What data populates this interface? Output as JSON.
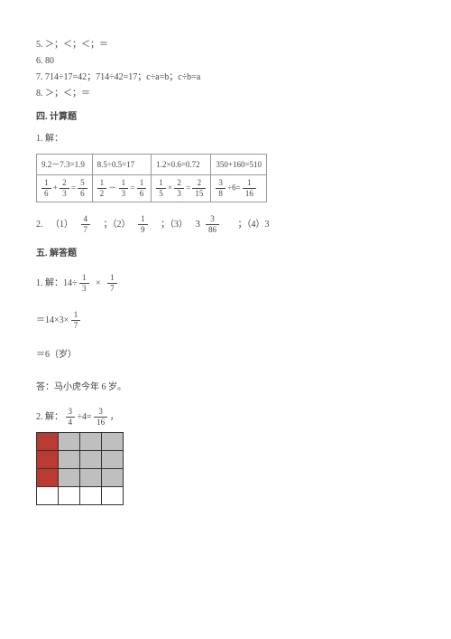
{
  "top_lines": {
    "l5": "5. ＞；＜；＜；＝",
    "l6": "6. 80",
    "l7": "7. 714÷17=42；714÷42=17；c÷a=b；c÷b=a",
    "l8": "8. ＞；＜；＝"
  },
  "sec4_title": "四. 计算题",
  "sec4_q1": "1. 解：",
  "table": {
    "r1c1": "9.2－7.3=1.9",
    "r1c2": "8.5÷0.5=17",
    "r1c3": "1.2×0.6=0.72",
    "r1c4": "350+160=510",
    "r2": {
      "c1": {
        "a_n": "1",
        "a_d": "6",
        "op1": "+",
        "b_n": "2",
        "b_d": "3",
        "eq": "=",
        "r_n": "5",
        "r_d": "6"
      },
      "c2": {
        "a_n": "1",
        "a_d": "2",
        "op1": "－",
        "b_n": "1",
        "b_d": "3",
        "eq": "=",
        "r_n": "1",
        "r_d": "6"
      },
      "c3": {
        "a_n": "1",
        "a_d": "5",
        "op1": "×",
        "b_n": "2",
        "b_d": "3",
        "eq": "=",
        "r_n": "2",
        "r_d": "15"
      },
      "c4": {
        "a_n": "3",
        "a_d": "8",
        "op1": "÷6=",
        "r_n": "1",
        "r_d": "16"
      }
    }
  },
  "q2": {
    "lead": "2.",
    "p1_lbl": "（1）",
    "p1_n": "4",
    "p1_d": "7",
    "p2_lbl": "；（2）",
    "p2_n": "1",
    "p2_d": "9",
    "p3_lbl": "；（3）",
    "p3_whole": "3",
    "p3_n": "3",
    "p3_d": "86",
    "p4_lbl": "；（4）3"
  },
  "sec5_title": "五. 解答题",
  "sec5_q1": {
    "head": "1. 解：14÷",
    "f1_n": "1",
    "f1_d": "3",
    "times": "×",
    "f2_n": "1",
    "f2_d": "7",
    "line2a": "＝14×3×",
    "f3_n": "1",
    "f3_d": "7",
    "line3": "＝6（岁）",
    "ans": "答：马小虎今年 6 岁。"
  },
  "sec5_q2": {
    "head": "2. 解：",
    "f1_n": "3",
    "f1_d": "4",
    "mid": "÷4=",
    "f2_n": "3",
    "f2_d": "16",
    "tail": "，"
  },
  "grid": {
    "rows": [
      [
        "red",
        "grey",
        "grey",
        "grey"
      ],
      [
        "red",
        "grey",
        "grey",
        "grey"
      ],
      [
        "red",
        "grey",
        "grey",
        "grey"
      ],
      [
        "white",
        "white",
        "white",
        "white"
      ]
    ],
    "colors": {
      "red": "#b83a33",
      "grey": "#bfbfbf",
      "white": "#ffffff"
    }
  }
}
